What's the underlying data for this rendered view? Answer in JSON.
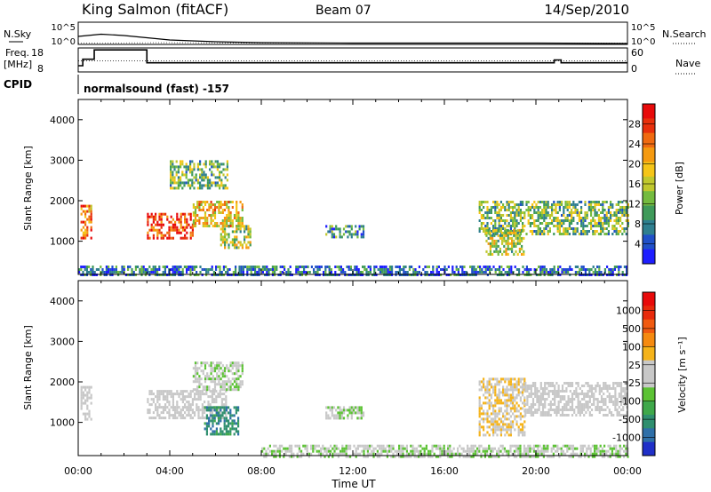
{
  "header": {
    "site": "King Salmon (fitACF)",
    "beam": "Beam 07",
    "date": "14/Sep/2010"
  },
  "summary_panels": {
    "nsky_label": "N.Sky",
    "nsearch_label": "N.Search",
    "freq_label": "Freq.",
    "freq_unit": "[MHz]",
    "nave_label": "Nave",
    "cpid_label": "CPID",
    "cpid_text": "normalsound (fast) -157",
    "noise_left_ticks": [
      "10^5",
      "10^0"
    ],
    "noise_right_ticks": [
      "10^5",
      "10^0"
    ],
    "freq_ticks": [
      "18",
      "8"
    ],
    "nave_ticks": [
      "60",
      "0"
    ]
  },
  "axes": {
    "ylabel": "Slant Range [km]",
    "xlabel": "Time UT",
    "yticks": [
      "4000",
      "3000",
      "2000",
      "1000"
    ],
    "xticks": [
      "00:00",
      "04:00",
      "08:00",
      "12:00",
      "16:00",
      "20:00",
      "00:00"
    ]
  },
  "colorbars": {
    "power": {
      "label": "Power [dB]",
      "ticks": [
        "28",
        "24",
        "20",
        "16",
        "12",
        "8",
        "4"
      ],
      "colors": [
        "#1e1eff",
        "#2050c8",
        "#2f7f8f",
        "#3f9a5a",
        "#74bb3f",
        "#c0c82e",
        "#f5c518",
        "#f59a10",
        "#f06a10",
        "#e8300c",
        "#e80a0a"
      ]
    },
    "velocity": {
      "label": "Velocity [m s⁻¹]",
      "ticks": [
        "1000",
        "500",
        "100",
        "25",
        "-25",
        "-100",
        "-500",
        "-1000"
      ],
      "colors": [
        "#2030c8",
        "#2e6fa8",
        "#2f8f6f",
        "#3fa84a",
        "#5cc234",
        "#c8c8c8",
        "#c8c8c8",
        "#f5b31a",
        "#f58a10",
        "#f05a10",
        "#e82a0c",
        "#e80a0a"
      ]
    }
  },
  "chart_data": [
    {
      "type": "line",
      "title": "N.Sky / N.Search",
      "x_range": [
        "00:00",
        "24:00"
      ],
      "ylim": [
        "10^0",
        "10^5"
      ],
      "series": [
        {
          "name": "N.Sky",
          "x": [
            0,
            1,
            2,
            3,
            4,
            6,
            8,
            12,
            16,
            20,
            24
          ],
          "y": [
            1.8,
            2.3,
            2.0,
            1.5,
            1.0,
            0.6,
            0.4,
            0.3,
            0.3,
            0.3,
            0.2
          ]
        },
        {
          "name": "N.Search",
          "x": [
            0,
            4,
            8,
            12,
            16,
            20,
            24
          ],
          "y": [
            0.3,
            0.4,
            0.3,
            0.3,
            0.3,
            0.3,
            0.3
          ]
        }
      ]
    },
    {
      "type": "line",
      "title": "Freq. / Nave",
      "x_range": [
        "00:00",
        "24:00"
      ],
      "freq_ylim": [
        8,
        18
      ],
      "nave_ylim": [
        0,
        60
      ],
      "series": [
        {
          "name": "Freq. [MHz]",
          "x": [
            0,
            0.2,
            0.2,
            0.7,
            0.7,
            3.0,
            3.0,
            20.8,
            20.8,
            21.1,
            21.1,
            24
          ],
          "y": [
            10.6,
            10.6,
            13.3,
            13.3,
            17.2,
            17.2,
            11.8,
            11.8,
            13.0,
            13.0,
            11.8,
            11.8
          ]
        },
        {
          "name": "Nave",
          "x": [
            0,
            24
          ],
          "y": [
            28,
            28
          ]
        }
      ]
    },
    {
      "type": "heatmap",
      "title": "Power",
      "x_range": [
        "00:00",
        "24:00"
      ],
      "ylim": [
        180,
        4500
      ],
      "colorbar_label": "Power [dB]",
      "colorbar_range": [
        0,
        30
      ],
      "patches": [
        {
          "t": [
            0.1,
            0.6
          ],
          "r": [
            1100,
            1900
          ],
          "v": 22
        },
        {
          "t": [
            3.0,
            5.0
          ],
          "r": [
            1100,
            1700
          ],
          "v": 26
        },
        {
          "t": [
            5.0,
            7.2
          ],
          "r": [
            1400,
            2000
          ],
          "v": 18
        },
        {
          "t": [
            6.2,
            7.5
          ],
          "r": [
            850,
            1400
          ],
          "v": 14
        },
        {
          "t": [
            4.0,
            6.5
          ],
          "r": [
            2300,
            3000
          ],
          "v": 12
        },
        {
          "t": [
            10.8,
            12.5
          ],
          "r": [
            1100,
            1400
          ],
          "v": 8
        },
        {
          "t": [
            17.5,
            24.0
          ],
          "r": [
            1200,
            2000
          ],
          "v": 12
        },
        {
          "t": [
            17.8,
            19.5
          ],
          "r": [
            700,
            1300
          ],
          "v": 14
        },
        {
          "t": [
            0.0,
            24.0
          ],
          "r": [
            180,
            400
          ],
          "v": 6
        }
      ]
    },
    {
      "type": "heatmap",
      "title": "Velocity",
      "x_range": [
        "00:00",
        "24:00"
      ],
      "ylim": [
        180,
        4500
      ],
      "colorbar_label": "Velocity [m s⁻¹]",
      "colorbar_range": [
        -1000,
        1000
      ],
      "patches": [
        {
          "t": [
            0.1,
            0.6
          ],
          "r": [
            1100,
            1900
          ],
          "v": 0
        },
        {
          "t": [
            3.0,
            6.5
          ],
          "r": [
            1100,
            1800
          ],
          "v": 0
        },
        {
          "t": [
            5.0,
            7.2
          ],
          "r": [
            1800,
            2500
          ],
          "v": -100
        },
        {
          "t": [
            5.5,
            7.0
          ],
          "r": [
            700,
            1400
          ],
          "v": -600
        },
        {
          "t": [
            10.8,
            12.5
          ],
          "r": [
            1100,
            1400
          ],
          "v": -150
        },
        {
          "t": [
            17.5,
            19.5
          ],
          "r": [
            700,
            2100
          ],
          "v": 150
        },
        {
          "t": [
            19.5,
            24.0
          ],
          "r": [
            1200,
            2000
          ],
          "v": 0
        },
        {
          "t": [
            8.0,
            24.0
          ],
          "r": [
            180,
            450
          ],
          "v": -120
        }
      ]
    }
  ]
}
